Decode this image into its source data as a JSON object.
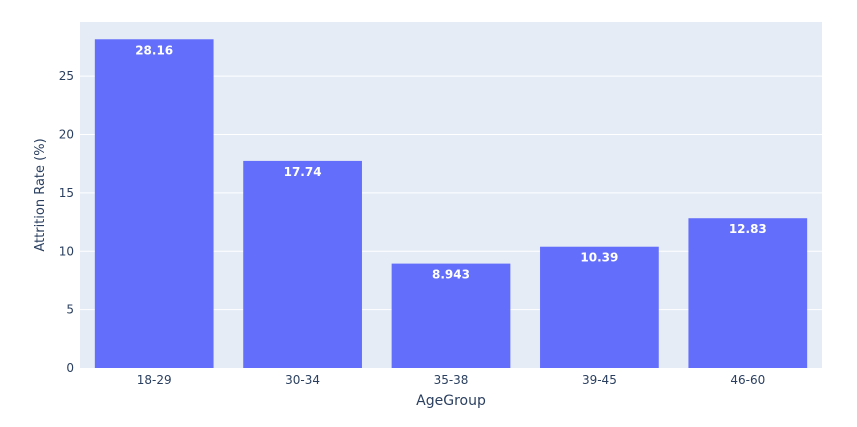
{
  "chart_data": {
    "type": "bar",
    "categories": [
      "18-29",
      "30-34",
      "35-38",
      "39-45",
      "46-60"
    ],
    "values": [
      28.16,
      17.74,
      8.943,
      10.39,
      12.83
    ],
    "value_labels": [
      "28.16",
      "17.74",
      "8.943",
      "10.39",
      "12.83"
    ],
    "title": "",
    "xlabel": "AgeGroup",
    "ylabel": "Attrition Rate (%)",
    "ylim": [
      0,
      29.64
    ],
    "yticks": [
      0,
      5,
      10,
      15,
      20,
      25
    ],
    "ytick_labels": [
      "0",
      "5",
      "10",
      "15",
      "20",
      "25"
    ],
    "grid": true,
    "legend": "none",
    "colors": {
      "bar": "#636efa",
      "plot_bg": "#e5ecf6",
      "grid": "#ffffff",
      "label": "#ffffff",
      "axis_text": "#2a3f5f"
    }
  }
}
